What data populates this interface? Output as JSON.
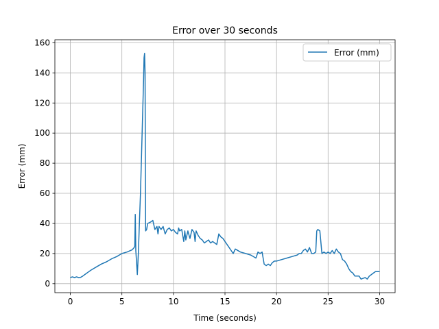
{
  "chart_data": {
    "type": "line",
    "title": "Error over 30 seconds",
    "xlabel": "Time (seconds)",
    "ylabel": "Error (mm)",
    "xlim": [
      -1.5,
      31.5
    ],
    "ylim": [
      -6,
      162
    ],
    "xticks": [
      0,
      5,
      10,
      15,
      20,
      25,
      30
    ],
    "yticks": [
      0,
      20,
      40,
      60,
      80,
      100,
      120,
      140,
      160
    ],
    "grid": true,
    "legend_position": "top-right",
    "line_color": "#1f77b4",
    "series": [
      {
        "name": "Error (mm)",
        "x": [
          0,
          0.2,
          0.4,
          0.6,
          0.8,
          1.0,
          1.2,
          1.5,
          2.0,
          2.5,
          3.0,
          3.5,
          4.0,
          4.5,
          5.0,
          5.5,
          6.0,
          6.2,
          6.25,
          6.3,
          6.35,
          6.5,
          6.6,
          6.7,
          6.8,
          6.9,
          7.0,
          7.1,
          7.15,
          7.2,
          7.25,
          7.3,
          7.4,
          7.5,
          7.8,
          8.0,
          8.2,
          8.4,
          8.5,
          8.6,
          8.8,
          9.0,
          9.2,
          9.4,
          9.6,
          9.8,
          10.0,
          10.2,
          10.4,
          10.5,
          10.6,
          10.8,
          11.0,
          11.1,
          11.2,
          11.4,
          11.6,
          11.8,
          12.0,
          12.1,
          12.2,
          12.4,
          12.6,
          12.8,
          13.0,
          13.2,
          13.4,
          13.6,
          13.8,
          14.0,
          14.2,
          14.4,
          14.6,
          14.8,
          15.0,
          15.2,
          15.4,
          15.6,
          15.8,
          16.0,
          16.5,
          17.0,
          17.5,
          18.0,
          18.2,
          18.4,
          18.6,
          18.8,
          19.0,
          19.2,
          19.4,
          19.6,
          19.8,
          20.0,
          20.5,
          21.0,
          21.5,
          22.0,
          22.2,
          22.4,
          22.6,
          22.8,
          23.0,
          23.2,
          23.4,
          23.6,
          23.8,
          23.9,
          24.0,
          24.2,
          24.4,
          24.6,
          24.8,
          25.0,
          25.2,
          25.4,
          25.6,
          25.8,
          26.0,
          26.2,
          26.4,
          26.6,
          26.8,
          27.0,
          27.2,
          27.4,
          27.6,
          27.8,
          28.0,
          28.2,
          28.4,
          28.6,
          28.8,
          29.0,
          29.2,
          29.4,
          29.6,
          29.8,
          30.0
        ],
        "y": [
          4,
          4.5,
          4,
          4.5,
          4,
          4.2,
          5,
          6.5,
          9,
          11,
          13,
          14.5,
          16.5,
          18,
          20,
          21,
          22.5,
          24,
          25,
          46,
          22,
          6,
          20,
          40,
          60,
          85,
          110,
          135,
          150,
          153,
          140,
          35,
          36,
          40,
          41,
          42,
          36,
          38,
          33,
          38,
          36,
          38,
          33,
          36,
          37,
          35,
          36,
          34,
          33,
          37,
          35,
          36,
          28,
          35,
          29,
          35,
          30,
          36,
          34,
          28,
          35,
          32,
          30,
          29,
          27,
          28,
          29,
          27,
          28,
          27,
          26,
          33,
          31,
          30,
          28,
          26,
          24,
          22,
          20,
          23,
          21,
          20,
          19,
          17,
          21,
          20,
          21,
          13,
          12,
          13,
          12,
          14,
          15,
          15,
          16,
          17,
          18,
          19,
          20,
          20,
          22,
          23,
          21,
          24,
          20,
          20,
          21,
          35,
          36,
          35,
          20,
          21,
          20,
          21,
          20,
          22,
          20,
          23,
          21,
          20,
          16,
          15,
          13,
          10,
          8,
          7,
          5,
          5,
          5,
          3,
          3.5,
          4,
          3,
          5,
          6,
          7,
          8,
          8,
          8
        ]
      }
    ]
  }
}
